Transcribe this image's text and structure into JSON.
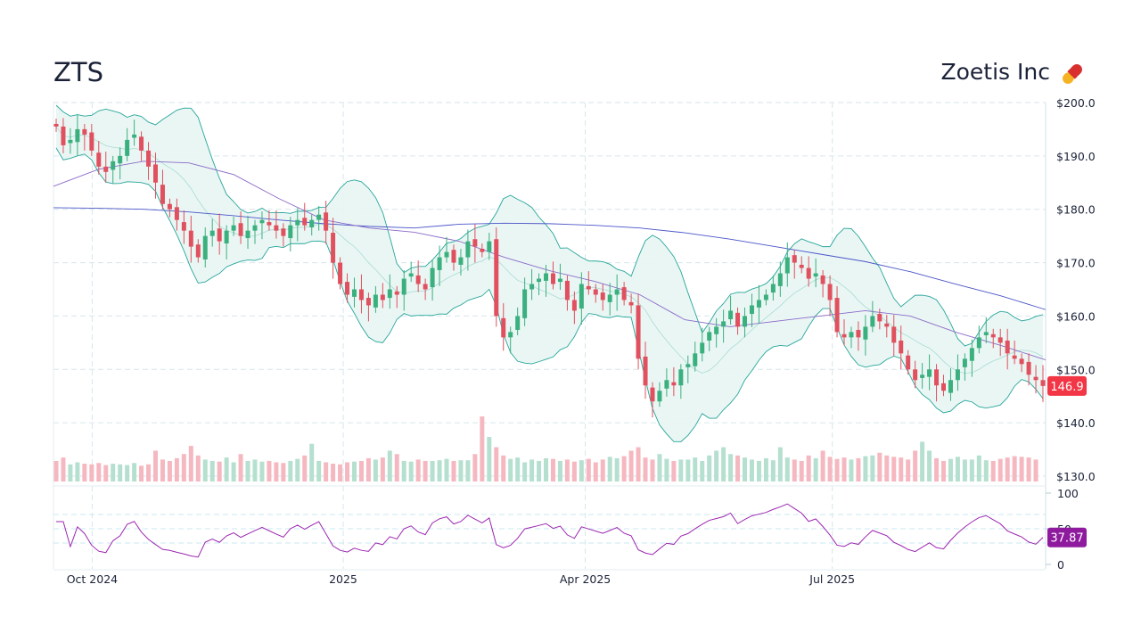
{
  "header": {
    "ticker": "ZTS",
    "company": "Zoetis Inc",
    "icon": "pill-icon"
  },
  "chart_data": {
    "type": "candlestick",
    "price_axis": {
      "ticks": [
        "$200.0",
        "$190.0",
        "$180.0",
        "$170.0",
        "$160.0",
        "$150.0",
        "$140.0",
        "$130.0"
      ],
      "ylim": [
        130,
        200
      ]
    },
    "rsi_axis": {
      "ticks": [
        "100",
        "50",
        "0"
      ],
      "ylim": [
        0,
        100
      ],
      "guides": [
        70,
        50,
        30
      ]
    },
    "x_ticks": [
      {
        "label": "Oct 2024",
        "pos": 0.039
      },
      {
        "label": "2025",
        "pos": 0.292
      },
      {
        "label": "Apr 2025",
        "pos": 0.536
      },
      {
        "label": "Jul 2025",
        "pos": 0.785
      }
    ],
    "closes": [
      195.5,
      192,
      193,
      195,
      194,
      191,
      188,
      187,
      189,
      190,
      193,
      194,
      191,
      188,
      185,
      181,
      180,
      178,
      176,
      173,
      171,
      175,
      176,
      174,
      176,
      177,
      175,
      176,
      177,
      178,
      177,
      176,
      175,
      177,
      178,
      177,
      178,
      179,
      176,
      170,
      166,
      164,
      165,
      163,
      162,
      164,
      163,
      165,
      164,
      167,
      168,
      166,
      165,
      169,
      171,
      172,
      170,
      171,
      174,
      173,
      172,
      174,
      160,
      156,
      157,
      160,
      165,
      166,
      167,
      168,
      166,
      167,
      163,
      161,
      166,
      165,
      164,
      163,
      164,
      165,
      163,
      162,
      152,
      147,
      144,
      146,
      148,
      147,
      150,
      151,
      153,
      155,
      157,
      158,
      159,
      161,
      158,
      160,
      162,
      163,
      164,
      166,
      168,
      171,
      170,
      169,
      167,
      168,
      166,
      163,
      157,
      156,
      157,
      156,
      158,
      160,
      159,
      158,
      155,
      153,
      150,
      148,
      149,
      150,
      147,
      146,
      148,
      150,
      152,
      154,
      156,
      157,
      156,
      155,
      153,
      152,
      151,
      149,
      148,
      146.9
    ],
    "volume": [
      3,
      3.5,
      2.5,
      2.8,
      2.6,
      2.5,
      2.7,
      2.4,
      2.6,
      2.5,
      2.4,
      2.7,
      2.3,
      2.5,
      4.5,
      3.2,
      3,
      3.4,
      4,
      5.2,
      3.8,
      3.2,
      3,
      2.9,
      3.5,
      2.8,
      4,
      3,
      3.2,
      2.9,
      3,
      2.8,
      2.7,
      3,
      3.3,
      3.8,
      5.5,
      3,
      2.8,
      2.6,
      2.5,
      2.8,
      2.9,
      3,
      3.4,
      3.2,
      3.5,
      4.5,
      4,
      3,
      2.9,
      3.2,
      3,
      3,
      3.1,
      3.3,
      3,
      3.1,
      3.1,
      4,
      9.5,
      6.5,
      5,
      3.8,
      3.3,
      3.5,
      2.8,
      3.2,
      3,
      3.4,
      3.3,
      3,
      3.2,
      2.9,
      3.1,
      3.3,
      2.8,
      3.2,
      3.6,
      3.4,
      3.7,
      4.5,
      5,
      3.5,
      3.2,
      4,
      3.3,
      3,
      3.2,
      3.2,
      3.5,
      3,
      3.8,
      4.5,
      5,
      4,
      3.8,
      3.5,
      3.2,
      3,
      3.4,
      3.1,
      5,
      3.5,
      3.2,
      3,
      3.8,
      3.4,
      4.5,
      3.6,
      3.3,
      3.5,
      3.2,
      3.4,
      3.7,
      3.8,
      4.2,
      3.8,
      3.6,
      3.5,
      3.2,
      4.5,
      5.8,
      4.5,
      3.4,
      3,
      3.3,
      3.6,
      3.2,
      3.2,
      3.8,
      3.1,
      3,
      3.3,
      3.5,
      3.7,
      3.6,
      3.5,
      3.2
    ],
    "sma_long": [
      180.3,
      180.2,
      180,
      179.5,
      178.8,
      178,
      177.3,
      176.8,
      176.5,
      177.2,
      177.4,
      177.3,
      177,
      176.5,
      175.6,
      174.4,
      173,
      171.6,
      170.2,
      168.3,
      166,
      163.8,
      161.2
    ],
    "sma_mid": [
      184.3,
      187.5,
      189,
      188.7,
      186.5,
      182,
      178,
      176.5,
      175.7,
      174,
      171,
      168.5,
      166.5,
      164,
      159.3,
      158,
      159,
      160,
      161,
      160,
      157,
      154.5,
      151.8
    ],
    "last_price": "146.9",
    "last_rsi": "37.87",
    "colors": {
      "up": "#3bb07f",
      "down": "#e0505e",
      "band": "#26a69a",
      "band_fill": "#e8f5f3",
      "sma_long": "#4a55c8",
      "sma_mid": "#8a6ac8",
      "rsi": "#9c27b0",
      "price_label": "#f23645",
      "rsi_label": "#8e1a9e"
    }
  }
}
